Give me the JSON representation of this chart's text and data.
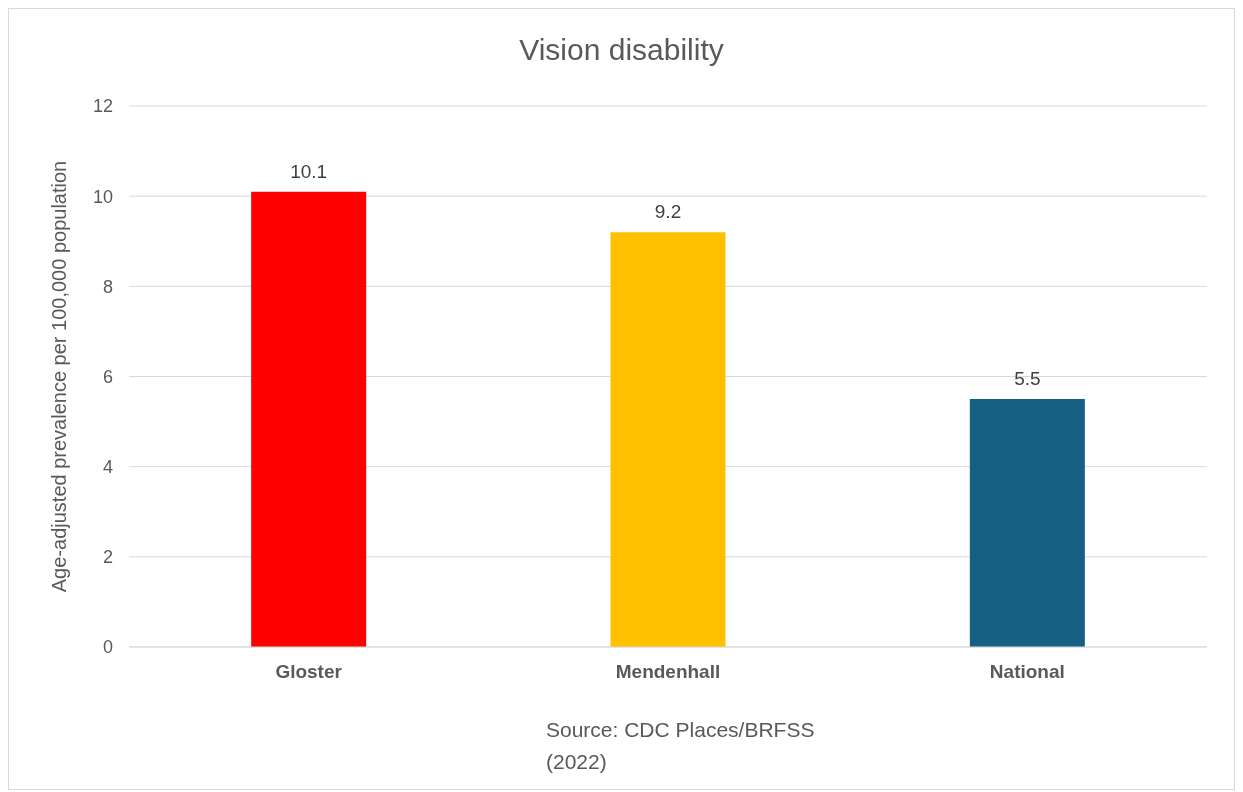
{
  "chart_data": {
    "type": "bar",
    "title": "Vision disability",
    "ylabel": "Age-adjusted prevalence per 100,000 population",
    "categories": [
      "Gloster",
      "Mendenhall",
      "National"
    ],
    "values": [
      10.1,
      9.2,
      5.5
    ],
    "colors": [
      "#ff0000",
      "#ffc000",
      "#156082"
    ],
    "ylim": [
      0,
      12
    ],
    "yticks": [
      0,
      2,
      4,
      6,
      8,
      10,
      12
    ],
    "grid": "y",
    "data_labels": true,
    "annotations": [
      "Source: CDC Places/BRFSS (2022)"
    ]
  }
}
